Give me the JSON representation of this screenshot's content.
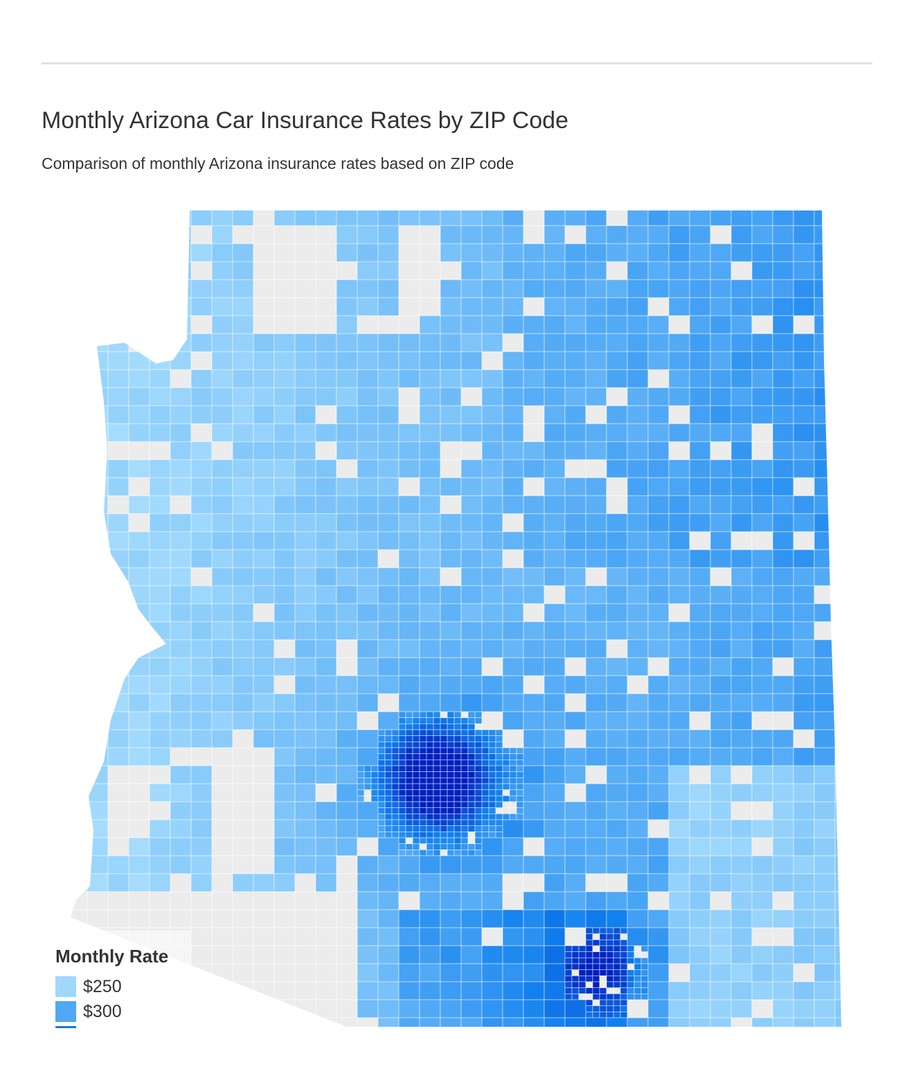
{
  "header": {
    "title": "Monthly Arizona Car Insurance Rates by ZIP Code",
    "subtitle": "Comparison of monthly Arizona insurance rates based on ZIP code"
  },
  "chart_data": {
    "type": "choropleth",
    "region": "Arizona",
    "unit": "ZIP code",
    "no_data_color": "#ececec",
    "boundary_color": "#ffffff",
    "color_scale": [
      "#a5dcfd",
      "#4fa8f5",
      "#1180ee",
      "#0020c0"
    ],
    "legend": {
      "title": "Monthly Rate",
      "placement": "bottom-left",
      "items": [
        {
          "label": "$250",
          "color": "#a0d8fc"
        },
        {
          "label": "$300",
          "color": "#4fa8f5"
        },
        {
          "label": "",
          "color": "#1178ec"
        }
      ]
    }
  }
}
